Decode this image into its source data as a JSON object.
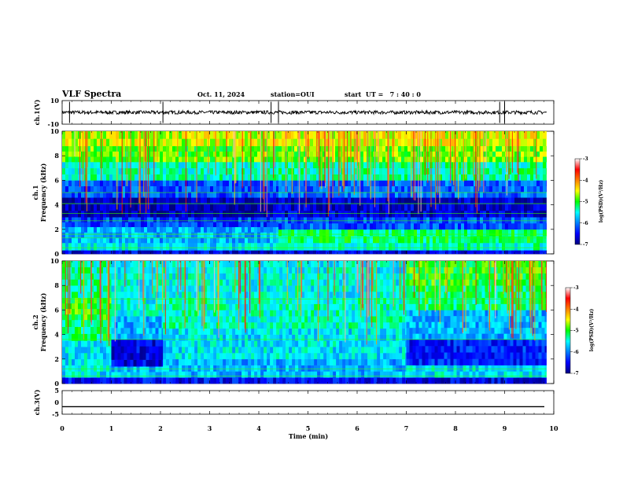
{
  "header": {
    "title": "VLF Spectra",
    "date": "Oct. 11, 2024",
    "station": "station=OUI",
    "start_ut": "start  UT =   7 : 40 : 0"
  },
  "chart_data": [
    {
      "type": "line",
      "name": "ch1-waveform",
      "ylabel": "ch.1(V)",
      "ylim": [
        -10,
        10
      ],
      "yticks": [
        "10",
        "-10"
      ],
      "x_range_min": [
        0,
        10
      ],
      "baseline_v": 0,
      "amplitude_v": 1.5,
      "spike_times_min": [
        0.15,
        2.05,
        4.25,
        4.4,
        8.9,
        9.0
      ],
      "color": "#000000"
    },
    {
      "type": "heatmap",
      "name": "ch1-spectrogram",
      "ylabel_lines": [
        "ch.1",
        "Frequency (kHz)"
      ],
      "ylim": [
        0,
        10
      ],
      "yticks": [
        "0",
        "2",
        "4",
        "6",
        "8",
        "10"
      ],
      "xlim": [
        0,
        9.85
      ],
      "colorbar": {
        "label": "log(PSD)(V²/Hz)",
        "range": [
          -7,
          -3
        ],
        "ticks": [
          "-3",
          "-4",
          "-5",
          "-6",
          "-7"
        ]
      },
      "segments": [
        {
          "t0": 0.0,
          "t1": 4.4,
          "bands": [
            {
              "f0": 0.0,
              "f1": 0.3,
              "level": -6.6
            },
            {
              "f0": 0.3,
              "f1": 0.9,
              "level": -5.6
            },
            {
              "f0": 0.9,
              "f1": 2.2,
              "level": -5.8
            },
            {
              "f0": 2.2,
              "f1": 3.0,
              "level": -6.3
            },
            {
              "f0": 3.0,
              "f1": 4.6,
              "level": -6.8
            },
            {
              "f0": 4.6,
              "f1": 6.0,
              "level": -6.2
            },
            {
              "f0": 6.0,
              "f1": 7.5,
              "level": -5.4
            },
            {
              "f0": 7.5,
              "f1": 8.8,
              "level": -4.9
            },
            {
              "f0": 8.8,
              "f1": 10.0,
              "level": -4.6
            }
          ]
        },
        {
          "t0": 4.4,
          "t1": 9.85,
          "bands": [
            {
              "f0": 0.0,
              "f1": 0.3,
              "level": -6.6
            },
            {
              "f0": 0.3,
              "f1": 0.9,
              "level": -5.4
            },
            {
              "f0": 0.9,
              "f1": 2.0,
              "level": -5.2
            },
            {
              "f0": 2.0,
              "f1": 3.0,
              "level": -6.2
            },
            {
              "f0": 3.0,
              "f1": 4.6,
              "level": -6.7
            },
            {
              "f0": 4.6,
              "f1": 6.0,
              "level": -6.1
            },
            {
              "f0": 6.0,
              "f1": 7.5,
              "level": -5.3
            },
            {
              "f0": 7.5,
              "f1": 8.8,
              "level": -4.8
            },
            {
              "f0": 8.8,
              "f1": 10.0,
              "level": -4.5
            }
          ]
        }
      ],
      "horizontal_lines_khz": [
        0.5,
        1.3,
        1.6,
        2.7,
        3.3,
        4.1,
        5.0
      ]
    },
    {
      "type": "heatmap",
      "name": "ch2-spectrogram",
      "ylabel_lines": [
        "ch.2",
        "Frequency (kHz)"
      ],
      "ylim": [
        0,
        10
      ],
      "yticks": [
        "0",
        "2",
        "4",
        "6",
        "8",
        "10"
      ],
      "xlim": [
        0,
        9.85
      ],
      "colorbar": {
        "label": "log(PSD)(V²/Hz)",
        "range": [
          -7,
          -3
        ],
        "ticks": [
          "-3",
          "-4",
          "-5",
          "-6",
          "-7"
        ]
      },
      "segments": [
        {
          "t0": 0.0,
          "t1": 1.0,
          "bands": [
            {
              "f0": 0.0,
              "f1": 0.5,
              "level": -6.5
            },
            {
              "f0": 0.5,
              "f1": 3.5,
              "level": -5.6
            },
            {
              "f0": 3.5,
              "f1": 5.2,
              "level": -5.2
            },
            {
              "f0": 5.2,
              "f1": 7.0,
              "level": -5.0
            },
            {
              "f0": 7.0,
              "f1": 10.0,
              "level": -5.3
            }
          ]
        },
        {
          "t0": 1.0,
          "t1": 2.05,
          "bands": [
            {
              "f0": 0.0,
              "f1": 0.5,
              "level": -6.5
            },
            {
              "f0": 0.5,
              "f1": 1.4,
              "level": -5.7
            },
            {
              "f0": 1.4,
              "f1": 3.6,
              "level": -6.6
            },
            {
              "f0": 3.6,
              "f1": 5.5,
              "level": -5.8
            },
            {
              "f0": 5.5,
              "f1": 10.0,
              "level": -5.5
            }
          ]
        },
        {
          "t0": 2.05,
          "t1": 7.0,
          "bands": [
            {
              "f0": 0.0,
              "f1": 0.5,
              "level": -6.5
            },
            {
              "f0": 0.5,
              "f1": 2.0,
              "level": -5.8
            },
            {
              "f0": 2.0,
              "f1": 4.5,
              "level": -5.6
            },
            {
              "f0": 4.5,
              "f1": 7.0,
              "level": -5.4
            },
            {
              "f0": 7.0,
              "f1": 10.0,
              "level": -5.5
            }
          ]
        },
        {
          "t0": 7.0,
          "t1": 9.85,
          "bands": [
            {
              "f0": 0.0,
              "f1": 0.5,
              "level": -6.6
            },
            {
              "f0": 0.5,
              "f1": 1.5,
              "level": -5.6
            },
            {
              "f0": 1.5,
              "f1": 3.6,
              "level": -6.4
            },
            {
              "f0": 3.6,
              "f1": 6.0,
              "level": -5.8
            },
            {
              "f0": 6.0,
              "f1": 8.0,
              "level": -5.2
            },
            {
              "f0": 8.0,
              "f1": 10.0,
              "level": -5.0
            }
          ]
        }
      ],
      "horizontal_lines_khz": [
        0.6,
        1.2,
        3.6,
        6.9
      ]
    },
    {
      "type": "line",
      "name": "ch3-waveform",
      "ylabel": "ch.3(V)",
      "ylim": [
        -5,
        5
      ],
      "yticks": [
        "5",
        "0",
        "-5"
      ],
      "level_v": -1.8,
      "color": "#000000"
    }
  ],
  "time_axis": {
    "xlabel": "Time (min)",
    "xlim": [
      0,
      10
    ],
    "ticks": [
      "0",
      "1",
      "2",
      "3",
      "4",
      "5",
      "6",
      "7",
      "8",
      "9",
      "10"
    ]
  }
}
